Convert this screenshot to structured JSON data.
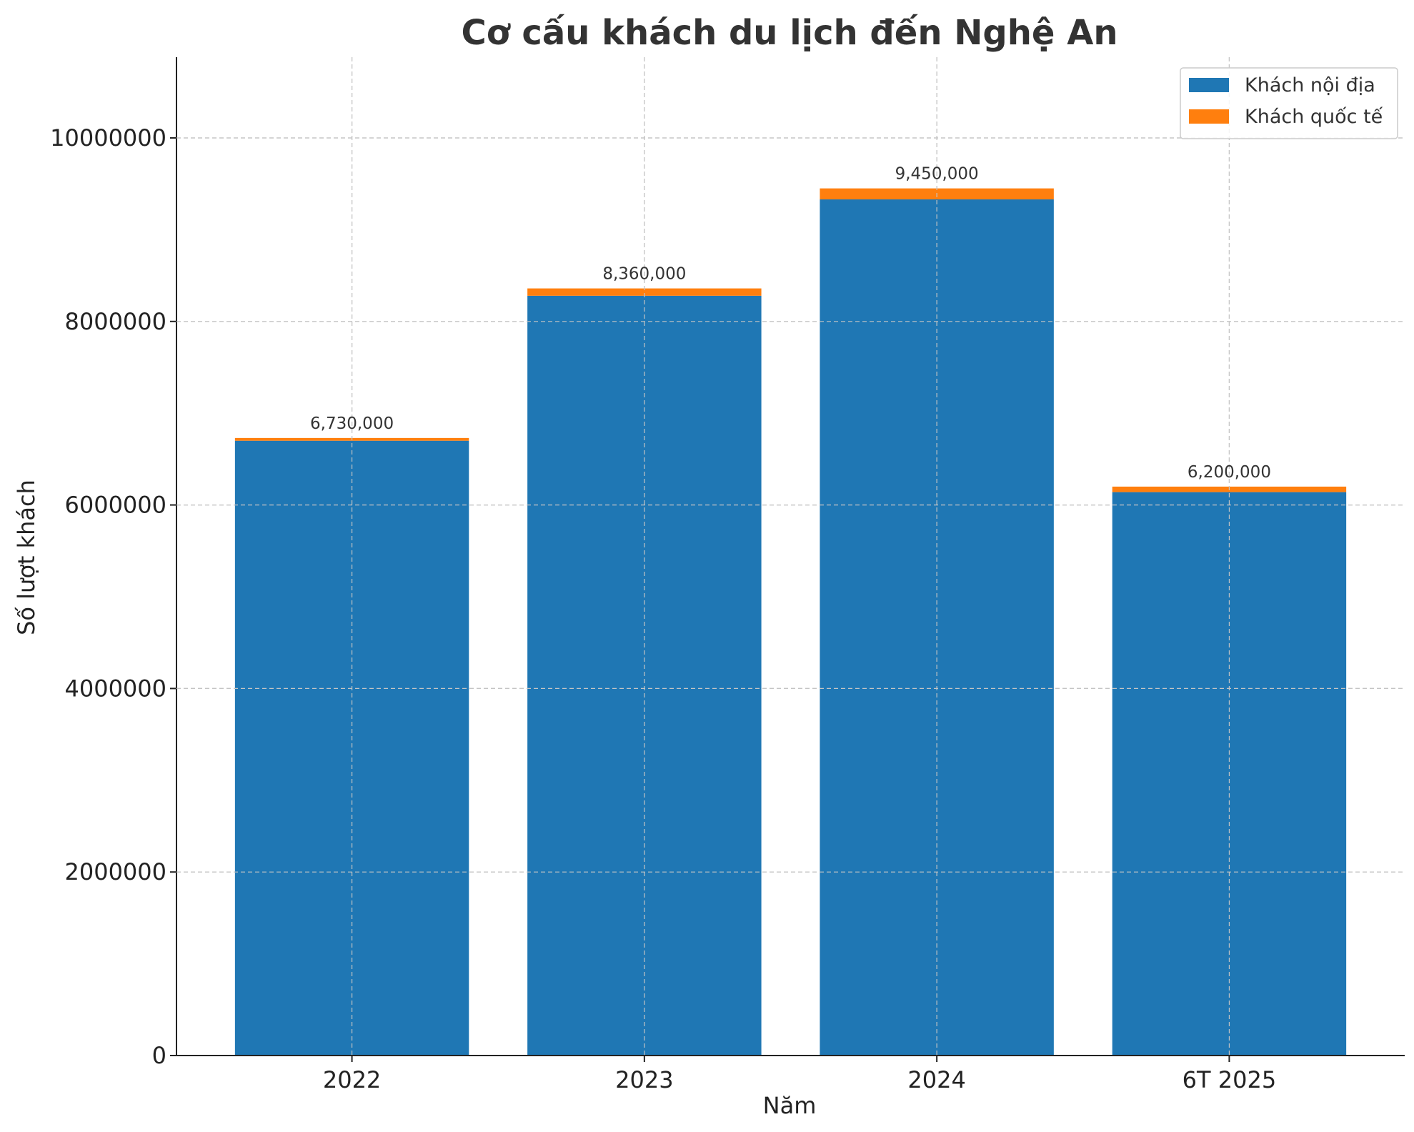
{
  "chart_data": {
    "type": "bar",
    "stacked": true,
    "title": "Cơ cấu khách du lịch đến Nghệ An",
    "xlabel": "Năm",
    "ylabel": "Số lượt khách",
    "categories": [
      "2022",
      "2023",
      "2024",
      "6T 2025"
    ],
    "series": [
      {
        "name": "Khách nội địa",
        "color": "#1f77b4",
        "values": [
          6700000,
          8280000,
          9330000,
          6140000
        ]
      },
      {
        "name": "Khách quốc tế",
        "color": "#ff7f0e",
        "values": [
          30000,
          80000,
          120000,
          60000
        ]
      }
    ],
    "totals": [
      6730000,
      8360000,
      9450000,
      6200000
    ],
    "total_labels": [
      "6,730,000",
      "8,360,000",
      "9,450,000",
      "6,200,000"
    ],
    "ylim": [
      0,
      10880000
    ],
    "yticks": [
      0,
      2000000,
      4000000,
      6000000,
      8000000,
      10000000
    ],
    "ytick_labels": [
      "0",
      "2000000",
      "4000000",
      "6000000",
      "8000000",
      "10000000"
    ],
    "grid": true,
    "legend_position": "top-right"
  }
}
